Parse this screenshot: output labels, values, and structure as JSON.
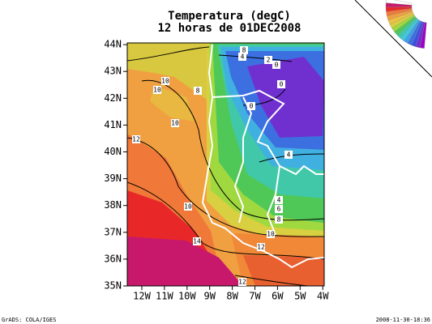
{
  "title": "Temperatura (degC)",
  "subtitle": "12 horas de 01DEC2008",
  "lat_labels": [
    "35N",
    "36N",
    "37N",
    "38N",
    "39N",
    "40N",
    "41N",
    "42N",
    "43N",
    "44N"
  ],
  "lon_labels": [
    "12W",
    "11W",
    "10W",
    "9W",
    "8W",
    "7W",
    "6W",
    "5W",
    "4W"
  ],
  "contour_labels": [
    "8",
    "4",
    "2",
    "0",
    "0",
    "0",
    "10",
    "10",
    "8",
    "10",
    "12",
    "4",
    "4",
    "6",
    "8",
    "10",
    "12",
    "14",
    "12",
    "10"
  ],
  "footer_left": "GrADS: COLA/IGES",
  "footer_right": "2008-11-30-18:36"
}
